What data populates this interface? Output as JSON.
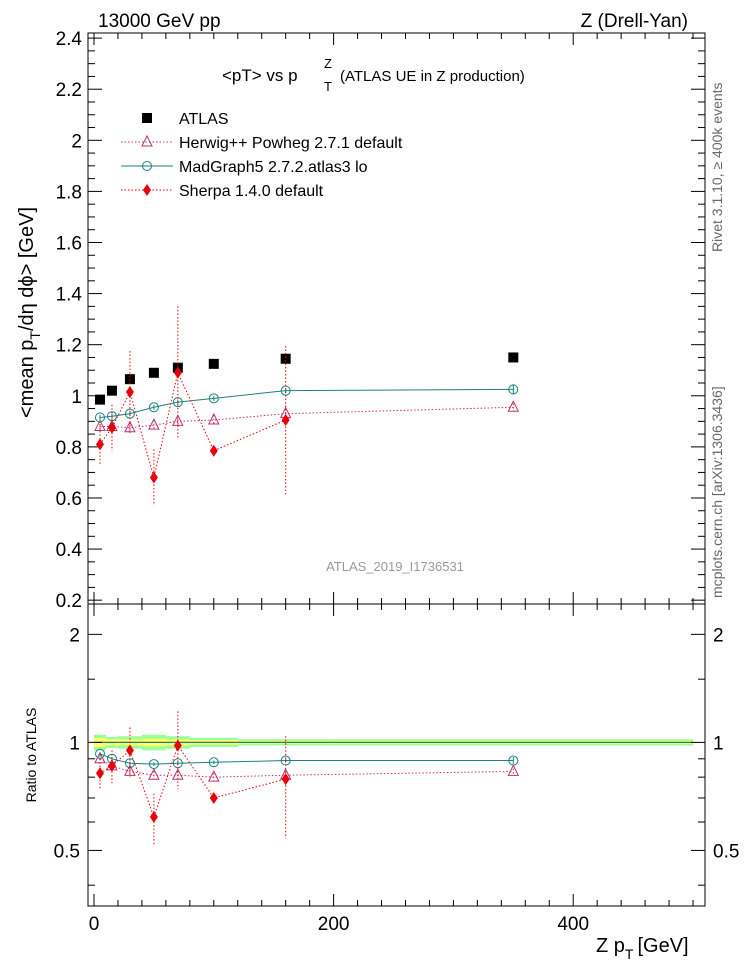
{
  "header": {
    "left": "13000 GeV pp",
    "right": "Z (Drell-Yan)"
  },
  "side_labels": {
    "rivet": "Rivet 3.1.10, ≥ 400k events",
    "mcplots": "mcplots.cern.ch [arXiv:1306.3436]"
  },
  "chart_data": {
    "type": "scatter",
    "title": "<pT> vs pT^Z (ATLAS UE in Z production)",
    "title_main": "<pT> vs p",
    "title_sup": "Z",
    "title_sub": "T",
    "title_rest": "(ATLAS UE in Z production)",
    "analysis": "ATLAS_2019_I1736531",
    "xlabel": "Z p_T [GeV]",
    "xlabel_main": "Z p",
    "xlabel_sub": "T",
    "xlabel_unit": "[GeV]",
    "ylabel": "<mean p_T/dη dϕ> [GeV]",
    "ylabel_main": "<mean p",
    "ylabel_sub": "T",
    "ylabel_rest": "/dη dϕ> [GeV]",
    "ratio_ylabel": "Ratio to ATLAS",
    "xlim": [
      -5,
      510
    ],
    "ylim": [
      0.185,
      2.42
    ],
    "ratio_ylim": [
      0.35,
      2.43
    ],
    "xticks": [
      0,
      200,
      400
    ],
    "yticks": [
      0.2,
      0.4,
      0.6,
      0.8,
      1,
      1.2,
      1.4,
      1.6,
      1.8,
      2,
      2.2,
      2.4
    ],
    "yticks_labels": [
      "0.2",
      "0.4",
      "0.6",
      "0.8",
      "1",
      "1.2",
      "1.4",
      "1.6",
      "1.8",
      "2",
      "2.2",
      "2.4"
    ],
    "ratio_yticks": [
      0.5,
      1,
      2
    ],
    "ratio_yticks_labels": [
      "0.5",
      "1",
      "2"
    ],
    "legend_position": "top-left",
    "series": [
      {
        "name": "ATLAS",
        "color": "#000000",
        "marker": "square",
        "line": "none",
        "x": [
          5,
          15,
          30,
          50,
          70,
          100,
          160,
          350
        ],
        "y": [
          0.985,
          1.02,
          1.065,
          1.09,
          1.11,
          1.125,
          1.145,
          1.15
        ],
        "yerr": [
          0,
          0,
          0,
          0,
          0,
          0,
          0,
          0
        ],
        "ratio": [
          1,
          1,
          1,
          1,
          1,
          1,
          1,
          1
        ],
        "ratio_err": [
          0,
          0,
          0,
          0,
          0,
          0,
          0,
          0
        ]
      },
      {
        "name": "Herwig++ Powheg 2.7.1 default",
        "color": "#c0306a",
        "marker": "triangle-open",
        "line": "dotted",
        "x": [
          5,
          15,
          30,
          50,
          70,
          100,
          160,
          350
        ],
        "y": [
          0.88,
          0.88,
          0.875,
          0.885,
          0.9,
          0.905,
          0.93,
          0.955
        ],
        "yerr": [
          0.02,
          0.02,
          0.02,
          0.02,
          0.02,
          0.02,
          0.02,
          0.015
        ],
        "ratio": [
          0.9,
          0.86,
          0.83,
          0.81,
          0.81,
          0.8,
          0.81,
          0.83
        ],
        "ratio_err": [
          0.02,
          0.02,
          0.02,
          0.02,
          0.02,
          0.02,
          0.02,
          0.015
        ]
      },
      {
        "name": "MadGraph5 2.7.2.atlas3 lo",
        "color": "#1a8080",
        "marker": "circle-open",
        "line": "solid",
        "x": [
          5,
          15,
          30,
          50,
          70,
          100,
          160,
          350
        ],
        "y": [
          0.915,
          0.92,
          0.93,
          0.955,
          0.975,
          0.99,
          1.02,
          1.025
        ],
        "yerr": [
          0.01,
          0.01,
          0.01,
          0.01,
          0.01,
          0.01,
          0.01,
          0.02
        ],
        "ratio": [
          0.93,
          0.9,
          0.875,
          0.87,
          0.875,
          0.88,
          0.89,
          0.89
        ],
        "ratio_err": [
          0.01,
          0.01,
          0.01,
          0.01,
          0.01,
          0.01,
          0.01,
          0.02
        ]
      },
      {
        "name": "Sherpa 1.4.0 default",
        "color": "#e8000b",
        "marker": "diamond",
        "line": "dotted",
        "x": [
          5,
          15,
          30,
          50,
          70,
          100,
          160
        ],
        "y": [
          0.81,
          0.875,
          1.015,
          0.68,
          1.09,
          0.785,
          0.905
        ],
        "yerr": [
          0.08,
          0.09,
          0.16,
          0.11,
          0.26,
          0.02,
          0.29
        ],
        "ratio": [
          0.82,
          0.86,
          0.95,
          0.62,
          0.98,
          0.7,
          0.79
        ],
        "ratio_err": [
          0.08,
          0.09,
          0.15,
          0.1,
          0.24,
          0.02,
          0.25
        ]
      }
    ],
    "ratio_bands": {
      "inner_color": "#ffff66",
      "outer_color": "#99ff99",
      "inner_halfwidth": [
        0.03,
        0.02,
        0.02,
        0.025,
        0.02,
        0.015,
        0.01,
        0.01
      ],
      "outer_halfwidth": [
        0.05,
        0.035,
        0.04,
        0.05,
        0.04,
        0.03,
        0.02,
        0.02
      ],
      "x_edges": [
        0,
        10,
        20,
        40,
        60,
        80,
        120,
        200,
        500
      ]
    }
  }
}
